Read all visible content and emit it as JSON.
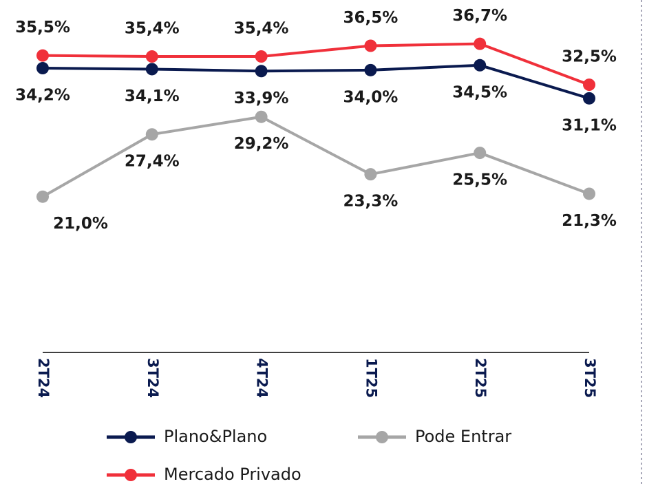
{
  "chart_data": {
    "type": "line",
    "categories": [
      "2T24",
      "3T24",
      "4T24",
      "1T25",
      "2T25",
      "3T25"
    ],
    "series": [
      {
        "name": "Plano&Plano",
        "color": "#0a1a4f",
        "values": [
          34.2,
          34.1,
          33.9,
          34.0,
          34.5,
          31.1
        ],
        "value_labels": [
          "34,2%",
          "34,1%",
          "33,9%",
          "34,0%",
          "34,5%",
          "31,1%"
        ]
      },
      {
        "name": "Pode Entrar",
        "color": "#a6a6a6",
        "values": [
          21.0,
          27.4,
          29.2,
          23.3,
          25.5,
          21.3
        ],
        "value_labels": [
          "21,0%",
          "27,4%",
          "29,2%",
          "23,3%",
          "25,5%",
          "21,3%"
        ]
      },
      {
        "name": "Mercado Privado",
        "color": "#f0303a",
        "values": [
          35.5,
          35.4,
          35.4,
          36.5,
          36.7,
          32.5
        ],
        "value_labels": [
          "35,5%",
          "35,4%",
          "35,4%",
          "36,5%",
          "36,7%",
          "32,5%"
        ]
      }
    ],
    "ylim": [
      5,
      40
    ]
  }
}
